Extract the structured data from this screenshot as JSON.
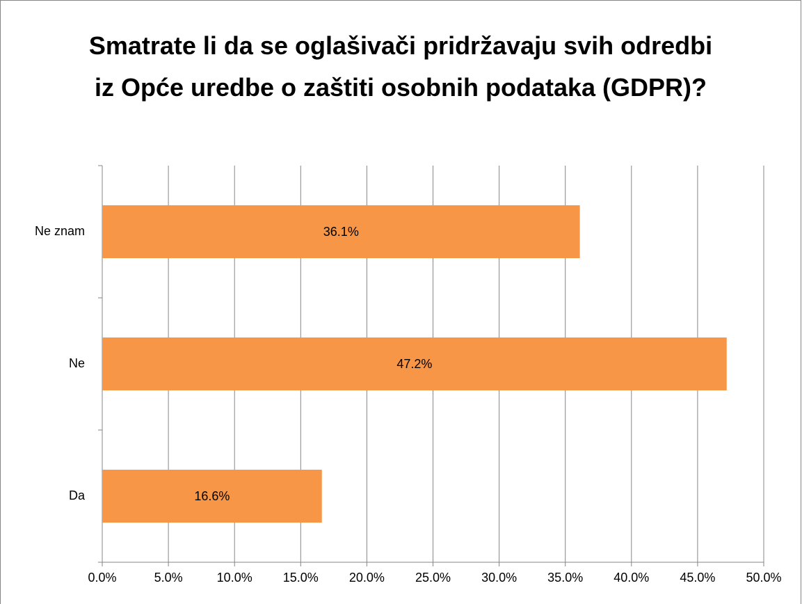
{
  "chart_data": {
    "type": "bar",
    "orientation": "horizontal",
    "title": "Smatrate li da se oglašivači pridržavaju svih odredbi iz Opće uredbe o zaštiti osobnih podataka (GDPR)?",
    "categories": [
      "Ne znam",
      "Ne",
      "Da"
    ],
    "values": [
      36.1,
      47.2,
      16.6
    ],
    "value_labels": [
      "36.1%",
      "47.2%",
      "16.6%"
    ],
    "color": "#f79646",
    "xlim": [
      0,
      50
    ],
    "xticks": [
      {
        "value": 0,
        "label": "0.0%"
      },
      {
        "value": 5,
        "label": "5.0%"
      },
      {
        "value": 10,
        "label": "10.0%"
      },
      {
        "value": 15,
        "label": "15.0%"
      },
      {
        "value": 20,
        "label": "20.0%"
      },
      {
        "value": 25,
        "label": "25.0%"
      },
      {
        "value": 30,
        "label": "30.0%"
      },
      {
        "value": 35,
        "label": "35.0%"
      },
      {
        "value": 40,
        "label": "40.0%"
      },
      {
        "value": 45,
        "label": "45.0%"
      },
      {
        "value": 50,
        "label": "50.0%"
      }
    ],
    "grid": true
  }
}
